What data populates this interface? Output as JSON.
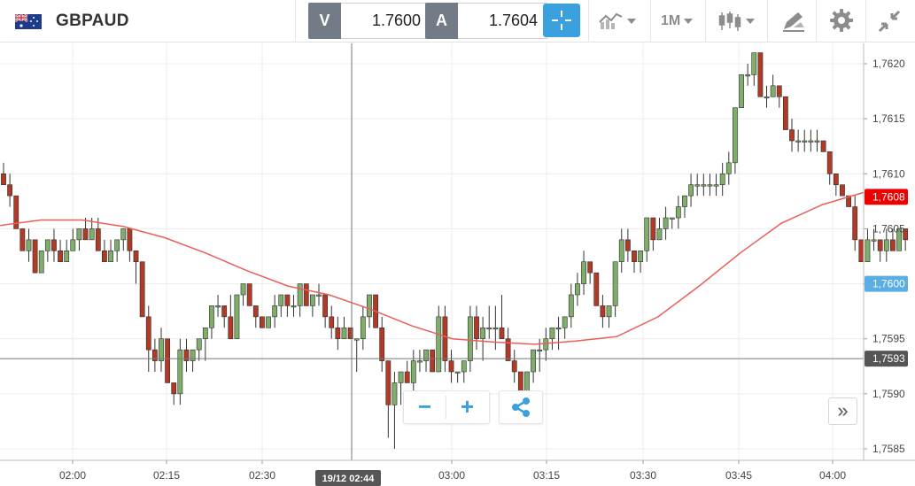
{
  "header": {
    "symbol": "GBPAUD",
    "flag_icon": "gb-au-flag-icon",
    "sell": {
      "label": "V",
      "price": "1.7600"
    },
    "buy": {
      "label": "A",
      "price": "1.7604"
    },
    "timeframe": "1M",
    "icons": [
      "crosshair-icon",
      "indicators-icon",
      "candlestick-icon",
      "drawing-tools-icon",
      "gear-icon",
      "collapse-icon"
    ]
  },
  "chart_controls": {
    "zoom_out": "−",
    "zoom_in": "+",
    "share_icon": "share-icon",
    "fast_forward": "»"
  },
  "chart_data": {
    "type": "candlestick",
    "y_ticks": [
      "1,7620",
      "1,7615",
      "1,7610",
      "1,7605",
      "1,7600",
      "1,7595",
      "1,7590",
      "1,7585"
    ],
    "y_range": [
      1.7584,
      1.7622
    ],
    "x_ticks": [
      "02:00",
      "02:15",
      "02:30",
      "03:00",
      "03:15",
      "03:30",
      "03:45",
      "04:00"
    ],
    "crosshair_time_label": "19/12 02:44",
    "crosshair_price_label": "1,7593",
    "moving_average_label": "1,7608",
    "current_price_label": "1,7600",
    "colors": {
      "up": "#7fae6a",
      "down": "#b03a26",
      "ma": "#ec5e59",
      "ma_label": "#ee0000",
      "price_label": "#5aaee3",
      "crosshair_label": "#555555"
    },
    "moving_average": [
      1.76053,
      1.76058,
      1.76058,
      1.76052,
      1.76042,
      1.76028,
      1.76012,
      1.75998,
      1.7599,
      1.75977,
      1.75962,
      1.7595,
      1.75947,
      1.75945,
      1.75948,
      1.75952,
      1.7597,
      1.75998,
      1.76028,
      1.76055,
      1.76072,
      1.76083
    ],
    "candles": [
      [
        1.761,
        1.7611,
        1.7609,
        1.7609
      ],
      [
        1.7609,
        1.761,
        1.7607,
        1.7608
      ],
      [
        1.7608,
        1.7608,
        1.7605,
        1.7605
      ],
      [
        1.7605,
        1.7605,
        1.7603,
        1.7603
      ],
      [
        1.7603,
        1.7605,
        1.7602,
        1.7604
      ],
      [
        1.7604,
        1.7604,
        1.7601,
        1.7601
      ],
      [
        1.7601,
        1.7603,
        1.7601,
        1.7603
      ],
      [
        1.7603,
        1.7604,
        1.7602,
        1.7604
      ],
      [
        1.7604,
        1.7605,
        1.7602,
        1.7603
      ],
      [
        1.7603,
        1.7604,
        1.7602,
        1.7602
      ],
      [
        1.7602,
        1.7604,
        1.7602,
        1.7603
      ],
      [
        1.7603,
        1.7605,
        1.7603,
        1.7604
      ],
      [
        1.7604,
        1.7605,
        1.7603,
        1.7605
      ],
      [
        1.7605,
        1.7606,
        1.7604,
        1.7604
      ],
      [
        1.7604,
        1.7606,
        1.7604,
        1.7605
      ],
      [
        1.7605,
        1.7606,
        1.7603,
        1.7603
      ],
      [
        1.7603,
        1.7604,
        1.7602,
        1.7602
      ],
      [
        1.7602,
        1.7604,
        1.7602,
        1.7603
      ],
      [
        1.7603,
        1.7604,
        1.7602,
        1.7604
      ],
      [
        1.7604,
        1.7605,
        1.7603,
        1.7605
      ],
      [
        1.7605,
        1.7605,
        1.7602,
        1.7603
      ],
      [
        1.7603,
        1.7603,
        1.76,
        1.7602
      ],
      [
        1.7602,
        1.7602,
        1.7597,
        1.7597
      ],
      [
        1.7597,
        1.7598,
        1.7592,
        1.7594
      ],
      [
        1.7594,
        1.7595,
        1.7592,
        1.7593
      ],
      [
        1.7593,
        1.7596,
        1.7592,
        1.7595
      ],
      [
        1.7595,
        1.7595,
        1.7591,
        1.7591
      ],
      [
        1.7591,
        1.7591,
        1.7589,
        1.759
      ],
      [
        1.759,
        1.7595,
        1.7589,
        1.7594
      ],
      [
        1.7594,
        1.7595,
        1.7592,
        1.7593
      ],
      [
        1.7593,
        1.7594,
        1.7592,
        1.7594
      ],
      [
        1.7594,
        1.7595,
        1.7593,
        1.7595
      ],
      [
        1.7595,
        1.7596,
        1.7593,
        1.7596
      ],
      [
        1.7596,
        1.7598,
        1.7595,
        1.7598
      ],
      [
        1.7598,
        1.7599,
        1.7597,
        1.7598
      ],
      [
        1.7598,
        1.7598,
        1.7596,
        1.7597
      ],
      [
        1.7597,
        1.7599,
        1.7595,
        1.7595
      ],
      [
        1.7595,
        1.7599,
        1.7595,
        1.7599
      ],
      [
        1.7599,
        1.76,
        1.7598,
        1.76
      ],
      [
        1.76,
        1.76,
        1.7598,
        1.7598
      ],
      [
        1.7598,
        1.7598,
        1.7596,
        1.7597
      ],
      [
        1.7597,
        1.7597,
        1.7596,
        1.7596
      ],
      [
        1.7596,
        1.7597,
        1.7596,
        1.7597
      ],
      [
        1.7597,
        1.7599,
        1.7596,
        1.7598
      ],
      [
        1.7598,
        1.7599,
        1.7597,
        1.7599
      ],
      [
        1.7599,
        1.7599,
        1.7597,
        1.7598
      ],
      [
        1.7598,
        1.7599,
        1.7597,
        1.7598
      ],
      [
        1.7598,
        1.76,
        1.7597,
        1.76
      ],
      [
        1.76,
        1.76,
        1.7598,
        1.7598
      ],
      [
        1.7598,
        1.7599,
        1.7597,
        1.7599
      ],
      [
        1.7599,
        1.76,
        1.7598,
        1.7599
      ],
      [
        1.7599,
        1.7599,
        1.7596,
        1.7597
      ],
      [
        1.7597,
        1.7598,
        1.7595,
        1.7596
      ],
      [
        1.7596,
        1.7597,
        1.7594,
        1.7595
      ],
      [
        1.7595,
        1.7597,
        1.7595,
        1.7596
      ],
      [
        1.7596,
        1.7596,
        1.7595,
        1.7595
      ],
      [
        1.7595,
        1.7595,
        1.7592,
        1.7595
      ],
      [
        1.7595,
        1.7598,
        1.7594,
        1.7597
      ],
      [
        1.7597,
        1.7599,
        1.7596,
        1.7599
      ],
      [
        1.7599,
        1.7599,
        1.7596,
        1.7596
      ],
      [
        1.7596,
        1.7597,
        1.7592,
        1.7593
      ],
      [
        1.7593,
        1.7593,
        1.7586,
        1.7589
      ],
      [
        1.7589,
        1.7592,
        1.7585,
        1.7591
      ],
      [
        1.7591,
        1.7592,
        1.7589,
        1.7592
      ],
      [
        1.7592,
        1.7593,
        1.7591,
        1.7591
      ],
      [
        1.7591,
        1.7594,
        1.759,
        1.7593
      ],
      [
        1.7593,
        1.7594,
        1.7592,
        1.7593
      ],
      [
        1.7593,
        1.7594,
        1.7592,
        1.7594
      ],
      [
        1.7594,
        1.7594,
        1.7592,
        1.7592
      ],
      [
        1.7592,
        1.7598,
        1.7592,
        1.7597
      ],
      [
        1.7597,
        1.7598,
        1.7592,
        1.7593
      ],
      [
        1.7593,
        1.7594,
        1.7591,
        1.7592
      ],
      [
        1.7592,
        1.7592,
        1.7591,
        1.7592
      ],
      [
        1.7592,
        1.7593,
        1.7591,
        1.7593
      ],
      [
        1.7593,
        1.7598,
        1.7592,
        1.7597
      ],
      [
        1.7597,
        1.7598,
        1.7594,
        1.7595
      ],
      [
        1.7595,
        1.7597,
        1.7593,
        1.7596
      ],
      [
        1.7596,
        1.7598,
        1.7595,
        1.7596
      ],
      [
        1.7596,
        1.7598,
        1.7594,
        1.7596
      ],
      [
        1.7596,
        1.7599,
        1.7595,
        1.7595
      ],
      [
        1.7595,
        1.7596,
        1.7593,
        1.7593
      ],
      [
        1.7593,
        1.7594,
        1.7591,
        1.7592
      ],
      [
        1.7592,
        1.7592,
        1.7589,
        1.759
      ],
      [
        1.759,
        1.7592,
        1.7589,
        1.7592
      ],
      [
        1.7592,
        1.7594,
        1.7591,
        1.7594
      ],
      [
        1.7594,
        1.7595,
        1.7592,
        1.7594
      ],
      [
        1.7594,
        1.7596,
        1.7593,
        1.7595
      ],
      [
        1.7595,
        1.7596,
        1.7594,
        1.7596
      ],
      [
        1.7596,
        1.7597,
        1.7594,
        1.7596
      ],
      [
        1.7596,
        1.7597,
        1.7595,
        1.7597
      ],
      [
        1.7597,
        1.76,
        1.7596,
        1.7599
      ],
      [
        1.7599,
        1.7601,
        1.7598,
        1.76
      ],
      [
        1.76,
        1.7603,
        1.7599,
        1.7602
      ],
      [
        1.7602,
        1.7602,
        1.76,
        1.7601
      ],
      [
        1.7601,
        1.7601,
        1.7598,
        1.7598
      ],
      [
        1.7598,
        1.7599,
        1.7596,
        1.7597
      ],
      [
        1.7597,
        1.7598,
        1.7596,
        1.7598
      ],
      [
        1.7598,
        1.7602,
        1.7597,
        1.7602
      ],
      [
        1.7602,
        1.7605,
        1.7601,
        1.7604
      ],
      [
        1.7604,
        1.7605,
        1.7602,
        1.7603
      ],
      [
        1.7603,
        1.7603,
        1.7601,
        1.7602
      ],
      [
        1.7602,
        1.7603,
        1.7601,
        1.7603
      ],
      [
        1.7603,
        1.7606,
        1.7602,
        1.7606
      ],
      [
        1.7606,
        1.7606,
        1.7603,
        1.7604
      ],
      [
        1.7604,
        1.7606,
        1.7604,
        1.7605
      ],
      [
        1.7605,
        1.7607,
        1.7604,
        1.7606
      ],
      [
        1.7606,
        1.7606,
        1.7605,
        1.7606
      ],
      [
        1.7606,
        1.7608,
        1.7605,
        1.7607
      ],
      [
        1.7607,
        1.7608,
        1.7606,
        1.7608
      ],
      [
        1.7608,
        1.761,
        1.7607,
        1.7609
      ],
      [
        1.7609,
        1.761,
        1.7608,
        1.7609
      ],
      [
        1.7609,
        1.761,
        1.7608,
        1.7609
      ],
      [
        1.7609,
        1.761,
        1.7608,
        1.7609
      ],
      [
        1.7609,
        1.761,
        1.7608,
        1.7609
      ],
      [
        1.7609,
        1.7611,
        1.7608,
        1.761
      ],
      [
        1.761,
        1.7612,
        1.7609,
        1.7611
      ],
      [
        1.7611,
        1.7616,
        1.761,
        1.7616
      ],
      [
        1.7616,
        1.7619,
        1.7616,
        1.7619
      ],
      [
        1.7619,
        1.762,
        1.7618,
        1.7619
      ],
      [
        1.7619,
        1.7621,
        1.7618,
        1.7621
      ],
      [
        1.7621,
        1.7621,
        1.7617,
        1.7617
      ],
      [
        1.7617,
        1.7618,
        1.7616,
        1.7617
      ],
      [
        1.7617,
        1.7619,
        1.7617,
        1.7618
      ],
      [
        1.7618,
        1.7618,
        1.7616,
        1.7617
      ],
      [
        1.7617,
        1.7617,
        1.7614,
        1.7614
      ],
      [
        1.7614,
        1.7615,
        1.7612,
        1.7613
      ],
      [
        1.7613,
        1.7614,
        1.7612,
        1.7613
      ],
      [
        1.7613,
        1.7614,
        1.7612,
        1.7613
      ],
      [
        1.7613,
        1.7614,
        1.7612,
        1.7613
      ],
      [
        1.7613,
        1.7614,
        1.7612,
        1.7613
      ],
      [
        1.7613,
        1.7613,
        1.7612,
        1.7612
      ],
      [
        1.7612,
        1.7612,
        1.7609,
        1.761
      ],
      [
        1.761,
        1.761,
        1.7608,
        1.7609
      ],
      [
        1.7609,
        1.7609,
        1.7608,
        1.7608
      ],
      [
        1.7608,
        1.7608,
        1.7607,
        1.7607
      ],
      [
        1.7607,
        1.7608,
        1.7603,
        1.7604
      ],
      [
        1.7604,
        1.7604,
        1.7602,
        1.7602
      ],
      [
        1.7602,
        1.7605,
        1.7602,
        1.7604
      ],
      [
        1.7604,
        1.7605,
        1.7603,
        1.7604
      ],
      [
        1.7604,
        1.7604,
        1.7602,
        1.7603
      ],
      [
        1.7603,
        1.7605,
        1.7602,
        1.7604
      ],
      [
        1.7604,
        1.7605,
        1.7603,
        1.7603
      ],
      [
        1.7603,
        1.7605,
        1.7603,
        1.7605
      ],
      [
        1.7605,
        1.7605,
        1.7603,
        1.7604
      ]
    ]
  }
}
